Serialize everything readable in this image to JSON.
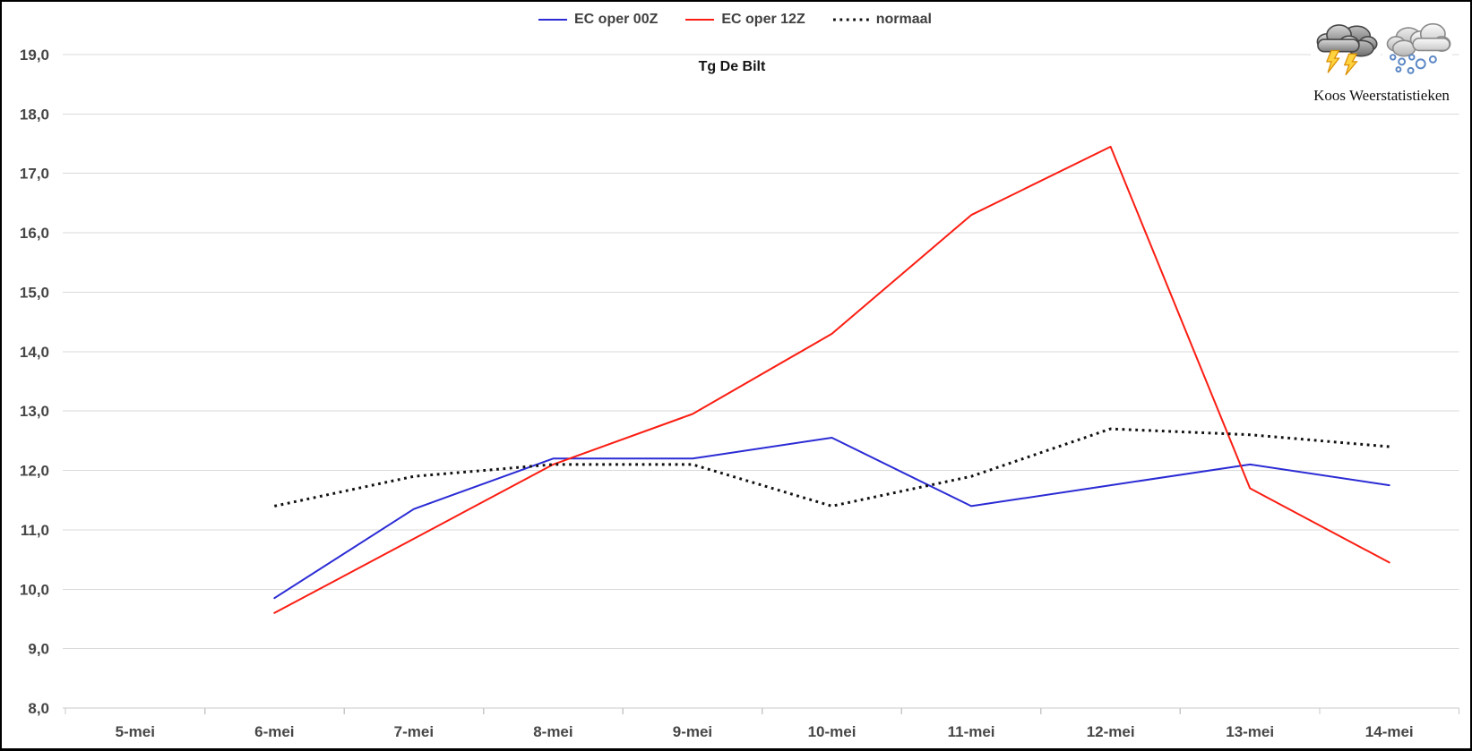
{
  "window": {
    "background": "#ffffff",
    "border_color": "#000000"
  },
  "branding": {
    "name": "Koos Weerstatistieken",
    "icons": [
      "storm-cloud-lightning-icon",
      "snow-hail-cloud-icon"
    ]
  },
  "colors": {
    "gridline": "#dadada",
    "axis_line": "#c8c8c8",
    "tick": "#c8c8c8",
    "axis_label": "#464646",
    "legend_text": "#404040",
    "title": "#141414",
    "series_blue": "#2b2bd5",
    "series_red": "#fb1d12",
    "series_black": "#111111"
  },
  "chart_data": {
    "type": "line",
    "title": "Tg De Bilt",
    "xlabel": "",
    "ylabel": "",
    "ylim": [
      8,
      19
    ],
    "y_step": 1,
    "grid": true,
    "legend_position": "top-center",
    "decimal_separator": ",",
    "categories": [
      "5-mei",
      "6-mei",
      "7-mei",
      "8-mei",
      "9-mei",
      "10-mei",
      "11-mei",
      "12-mei",
      "13-mei",
      "14-mei"
    ],
    "y_tick_labels": [
      "19,0",
      "18,0",
      "17,0",
      "16,0",
      "15,0",
      "14,0",
      "13,0",
      "12,0",
      "11,0",
      "10,0",
      "9,0",
      "8,0"
    ],
    "series": [
      {
        "name": "EC oper 00Z",
        "color": "#2b2bd5",
        "line_style": "solid",
        "values": [
          null,
          9.85,
          11.35,
          12.2,
          12.2,
          12.55,
          11.4,
          11.75,
          12.1,
          11.75
        ]
      },
      {
        "name": "EC oper 12Z",
        "color": "#fb1d12",
        "line_style": "solid",
        "values": [
          null,
          9.6,
          10.85,
          12.1,
          12.95,
          14.3,
          16.3,
          17.45,
          11.7,
          10.45
        ]
      },
      {
        "name": "normaal",
        "color": "#111111",
        "line_style": "dotted",
        "values": [
          null,
          11.4,
          11.9,
          12.1,
          12.1,
          11.4,
          11.9,
          12.7,
          12.6,
          12.4
        ]
      }
    ]
  }
}
